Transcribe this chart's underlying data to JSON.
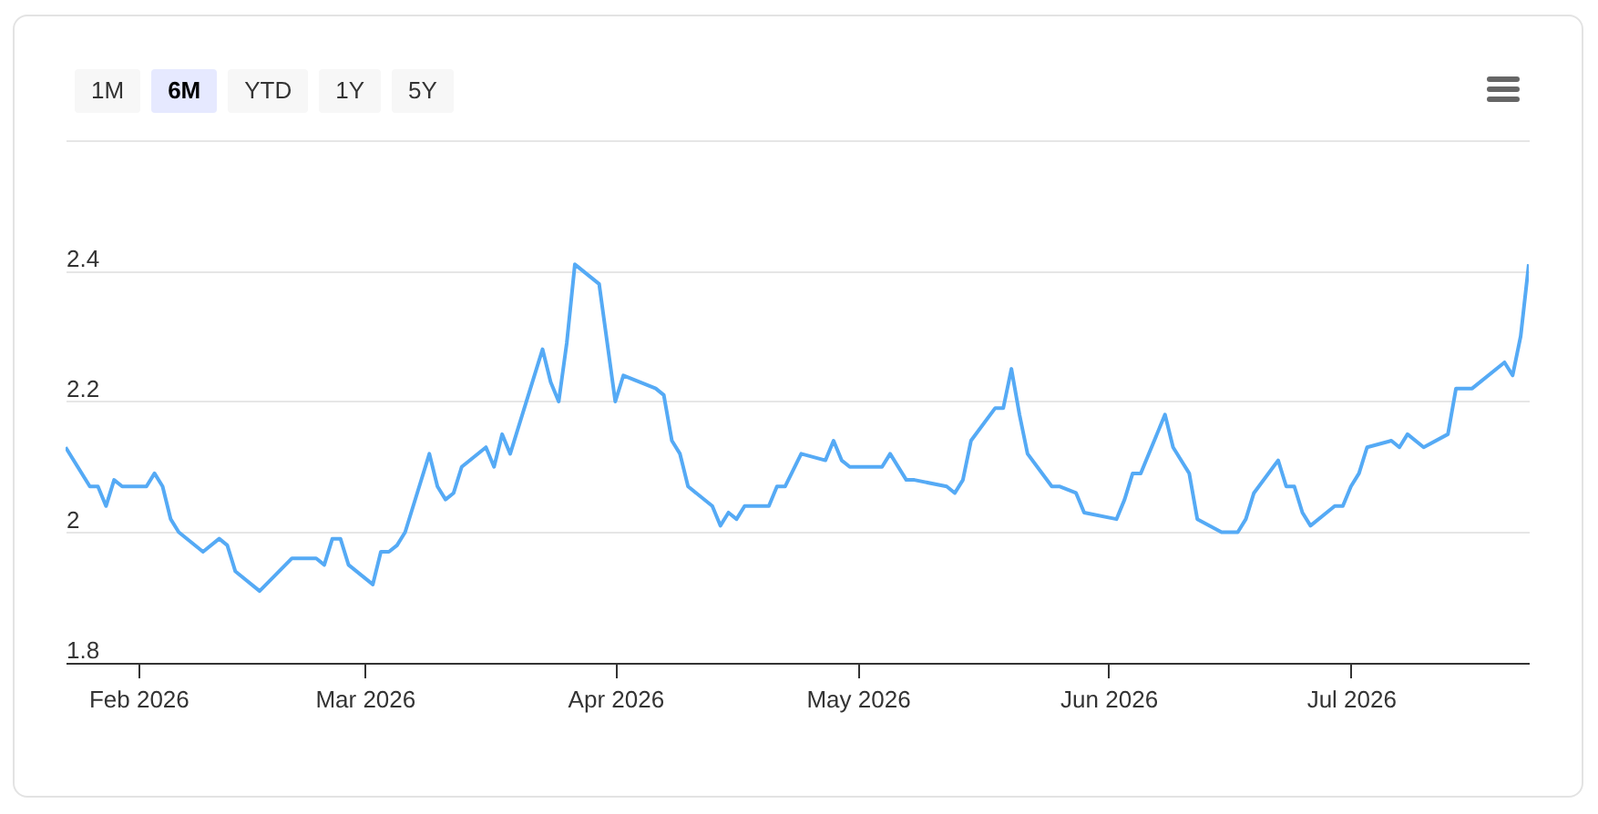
{
  "chart_data": {
    "type": "line",
    "color": "#55aaf5",
    "marker": "none",
    "line_style": "solid",
    "grid": "y",
    "annotations": [
      "1M",
      "6M",
      "YTD",
      "1Y",
      "5Y"
    ],
    "xlim": [
      "2026-01-23",
      "2026-07-23"
    ],
    "xticks": [
      {
        "value": "2026-02-01",
        "label": "Feb 2026"
      },
      {
        "value": "2026-03-01",
        "label": "Mar 2026"
      },
      {
        "value": "2026-04-01",
        "label": "Apr 2026"
      },
      {
        "value": "2026-05-01",
        "label": "May 2026"
      },
      {
        "value": "2026-06-01",
        "label": "Jun 2026"
      },
      {
        "value": "2026-07-01",
        "label": "Jul 2026"
      }
    ],
    "ylim": [
      1.8,
      2.6
    ],
    "yticks": [
      1.8,
      2,
      2.2,
      2.4,
      {
        "value": 2.6,
        "label": null
      }
    ],
    "x": [
      "2026-01-23",
      "2026-01-26",
      "2026-01-27",
      "2026-01-28",
      "2026-01-29",
      "2026-01-30",
      "2026-02-02",
      "2026-02-03",
      "2026-02-04",
      "2026-02-05",
      "2026-02-06",
      "2026-02-09",
      "2026-02-11",
      "2026-02-12",
      "2026-02-13",
      "2026-02-16",
      "2026-02-20",
      "2026-02-23",
      "2026-02-24",
      "2026-02-25",
      "2026-02-26",
      "2026-02-27",
      "2026-03-02",
      "2026-03-03",
      "2026-03-04",
      "2026-03-05",
      "2026-03-06",
      "2026-03-09",
      "2026-03-10",
      "2026-03-11",
      "2026-03-12",
      "2026-03-13",
      "2026-03-16",
      "2026-03-17",
      "2026-03-18",
      "2026-03-19",
      "2026-03-23",
      "2026-03-24",
      "2026-03-25",
      "2026-03-26",
      "2026-03-27",
      "2026-03-30",
      "2026-04-01",
      "2026-04-02",
      "2026-04-06",
      "2026-04-07",
      "2026-04-08",
      "2026-04-09",
      "2026-04-10",
      "2026-04-13",
      "2026-04-14",
      "2026-04-15",
      "2026-04-16",
      "2026-04-17",
      "2026-04-20",
      "2026-04-21",
      "2026-04-22",
      "2026-04-24",
      "2026-04-27",
      "2026-04-28",
      "2026-04-29",
      "2026-04-30",
      "2026-05-04",
      "2026-05-05",
      "2026-05-07",
      "2026-05-08",
      "2026-05-12",
      "2026-05-13",
      "2026-05-14",
      "2026-05-15",
      "2026-05-18",
      "2026-05-19",
      "2026-05-20",
      "2026-05-21",
      "2026-05-22",
      "2026-05-25",
      "2026-05-26",
      "2026-05-28",
      "2026-05-29",
      "2026-06-02",
      "2026-06-03",
      "2026-06-04",
      "2026-06-05",
      "2026-06-08",
      "2026-06-09",
      "2026-06-11",
      "2026-06-12",
      "2026-06-15",
      "2026-06-17",
      "2026-06-18",
      "2026-06-19",
      "2026-06-22",
      "2026-06-23",
      "2026-06-24",
      "2026-06-25",
      "2026-06-26",
      "2026-06-29",
      "2026-06-30",
      "2026-07-01",
      "2026-07-02",
      "2026-07-03",
      "2026-07-06",
      "2026-07-07",
      "2026-07-08",
      "2026-07-10",
      "2026-07-13",
      "2026-07-14",
      "2026-07-16",
      "2026-07-20",
      "2026-07-21",
      "2026-07-22",
      "2026-07-23"
    ],
    "values": [
      2.13,
      2.07,
      2.07,
      2.04,
      2.08,
      2.07,
      2.07,
      2.09,
      2.07,
      2.02,
      2.0,
      1.97,
      1.99,
      1.98,
      1.94,
      1.91,
      1.96,
      1.96,
      1.95,
      1.99,
      1.99,
      1.95,
      1.92,
      1.97,
      1.97,
      1.98,
      2.0,
      2.12,
      2.07,
      2.05,
      2.06,
      2.1,
      2.13,
      2.1,
      2.15,
      2.12,
      2.28,
      2.23,
      2.2,
      2.29,
      2.41,
      2.38,
      2.2,
      2.24,
      2.22,
      2.21,
      2.14,
      2.12,
      2.07,
      2.04,
      2.01,
      2.03,
      2.02,
      2.04,
      2.04,
      2.07,
      2.07,
      2.12,
      2.11,
      2.14,
      2.11,
      2.1,
      2.1,
      2.12,
      2.08,
      2.08,
      2.07,
      2.06,
      2.08,
      2.14,
      2.19,
      2.19,
      2.25,
      2.18,
      2.12,
      2.07,
      2.07,
      2.06,
      2.03,
      2.02,
      2.05,
      2.09,
      2.09,
      2.18,
      2.13,
      2.09,
      2.02,
      2.0,
      2.0,
      2.02,
      2.06,
      2.11,
      2.07,
      2.07,
      2.03,
      2.01,
      2.04,
      2.04,
      2.07,
      2.09,
      2.13,
      2.14,
      2.13,
      2.15,
      2.13,
      2.15,
      2.22,
      2.22,
      2.26,
      2.24,
      2.3,
      2.41
    ]
  }
}
